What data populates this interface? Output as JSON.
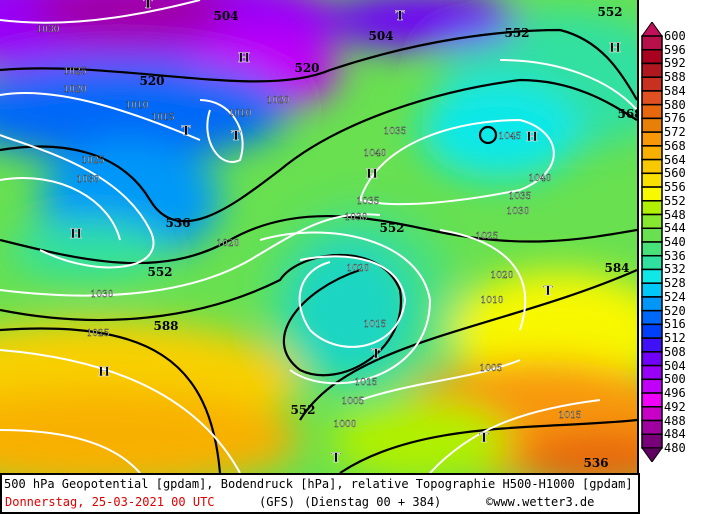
{
  "map": {
    "high_labels": [
      "H",
      "H",
      "H",
      "H",
      "H",
      "H"
    ],
    "low_labels": [
      "T",
      "T",
      "T",
      "T",
      "T",
      "T",
      "T",
      "T"
    ],
    "geopotential_labels": [
      "504",
      "504",
      "520",
      "520",
      "536",
      "552",
      "552",
      "552",
      "552",
      "568",
      "588",
      "584",
      "536",
      "552"
    ],
    "pressure_labels": [
      "1030",
      "1025",
      "1020",
      "1010",
      "1015",
      "1010",
      "1020",
      "1040",
      "1045",
      "1035",
      "1040",
      "1035",
      "1030",
      "1025",
      "1030",
      "1025",
      "1020",
      "1015",
      "1010",
      "1005",
      "1000",
      "1005",
      "1015",
      "1020",
      "1030",
      "1025",
      "1035",
      "1030",
      "1015",
      "1020"
    ]
  },
  "legend": {
    "ticks": [
      "600",
      "596",
      "592",
      "588",
      "584",
      "580",
      "576",
      "572",
      "568",
      "564",
      "560",
      "556",
      "552",
      "548",
      "544",
      "540",
      "536",
      "532",
      "528",
      "524",
      "520",
      "516",
      "512",
      "508",
      "504",
      "500",
      "496",
      "492",
      "488",
      "484",
      "480"
    ],
    "colors": [
      "#b8104a",
      "#a8001e",
      "#b01820",
      "#c83020",
      "#e05020",
      "#e86810",
      "#e88008",
      "#f89808",
      "#f8b000",
      "#f8c800",
      "#f8e000",
      "#f8f800",
      "#b0f000",
      "#88e830",
      "#68e050",
      "#48e078",
      "#30e0a0",
      "#10e8e8",
      "#00c8f8",
      "#0098f8",
      "#0068f8",
      "#0040f8",
      "#4010f8",
      "#7000f8",
      "#9800f8",
      "#c000f8",
      "#f000f8",
      "#c800c8",
      "#a000a0",
      "#780078"
    ],
    "top_arrow_color": "#c0105a",
    "bottom_arrow_color": "#600060"
  },
  "footer": {
    "title": "500 hPa Geopotential [gpdam], Bodendruck [hPa], relative Topographie H500-H1000 [gpdam]",
    "date": "Donnerstag, 25-03-2021  00 UTC",
    "model": "(GFS)",
    "run": "(Dienstag 00 + 384)",
    "credit": "©www.wetter3.de"
  }
}
